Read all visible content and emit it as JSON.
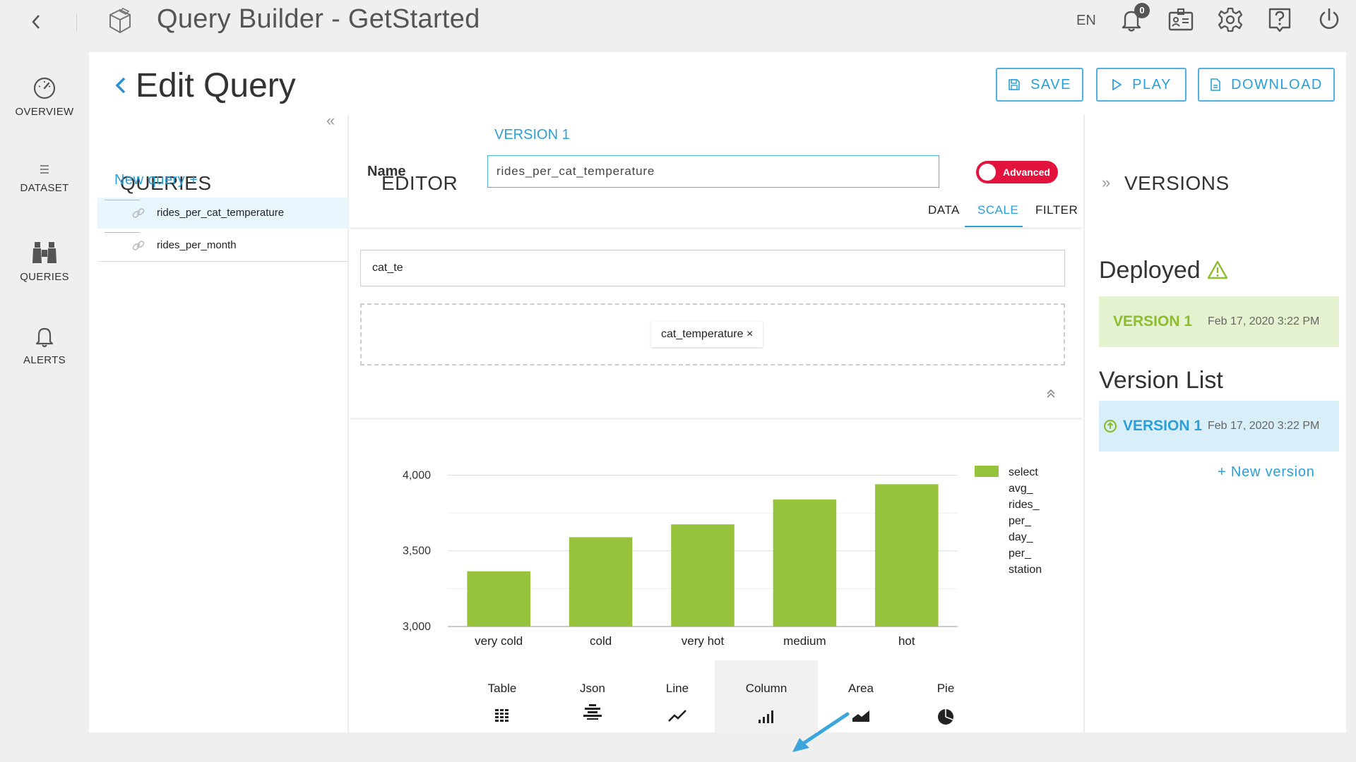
{
  "header": {
    "app_title": "Query Builder - GetStarted",
    "language": "EN",
    "notification_count": "0"
  },
  "nav": {
    "items": [
      {
        "label": "OVERVIEW",
        "icon": "gauge-icon"
      },
      {
        "label": "DATASET",
        "icon": "menu-icon"
      },
      {
        "label": "QUERIES",
        "icon": "binoculars-icon"
      },
      {
        "label": "ALERTS",
        "icon": "bell-icon"
      }
    ],
    "collapse": "«"
  },
  "page": {
    "title": "Edit Query",
    "actions": {
      "save": "SAVE",
      "play": "PLAY",
      "download": "DOWNLOAD"
    }
  },
  "queries_panel": {
    "heading": "QUERIES",
    "new_query": "New query +",
    "items": [
      {
        "name": "rides_per_cat_temperature",
        "active": true
      },
      {
        "name": "rides_per_month",
        "active": false
      }
    ]
  },
  "editor": {
    "heading": "EDITOR",
    "version": "VERSION 1",
    "name_label": "Name",
    "name_value": "rides_per_cat_temperature",
    "advanced_label": "Advanced",
    "tabs": [
      "DATA",
      "SCALE",
      "FILTER"
    ],
    "active_tab": "SCALE",
    "filter_value": "cat_te",
    "chip_label": "cat_temperature ×"
  },
  "chart_data": {
    "type": "bar",
    "categories": [
      "very cold",
      "cold",
      "very hot",
      "medium",
      "hot"
    ],
    "series": [
      {
        "name": "select avg_ rides_ per_ day_ per_ station",
        "values": [
          3365,
          3590,
          3675,
          3840,
          3940
        ]
      }
    ],
    "legend_lines": [
      "select",
      "avg_",
      "rides_",
      "per_",
      "day_",
      "per_",
      "station"
    ],
    "y_ticks": [
      "3,000",
      "3,500",
      "4,000"
    ],
    "ylim": [
      3000,
      4100
    ],
    "legend_position": "right",
    "grid": true,
    "bar_color": "#97c23c"
  },
  "viz_types": [
    {
      "label": "Table",
      "icon": "table-icon"
    },
    {
      "label": "Json",
      "icon": "json-icon"
    },
    {
      "label": "Line",
      "icon": "line-chart-icon"
    },
    {
      "label": "Column",
      "icon": "column-chart-icon",
      "selected": true
    },
    {
      "label": "Area",
      "icon": "area-chart-icon"
    },
    {
      "label": "Pie",
      "icon": "pie-chart-icon"
    }
  ],
  "versions_panel": {
    "heading": "VERSIONS",
    "deployed_title": "Deployed",
    "deployed": {
      "name": "VERSION 1",
      "date": "Feb 17, 2020 3:22 PM"
    },
    "list_title": "Version List",
    "list": [
      {
        "name": "VERSION 1",
        "date": "Feb 17, 2020 3:22 PM"
      }
    ],
    "new_version": "+   New version"
  },
  "colors": {
    "accent": "#2a9fd8",
    "advanced_toggle": "#e2143e",
    "deployed_bg": "#e5f2d0",
    "deployed_text": "#8bbd2e",
    "version_list_bg": "#d8eff9",
    "arrow": "#3aa6dd"
  }
}
